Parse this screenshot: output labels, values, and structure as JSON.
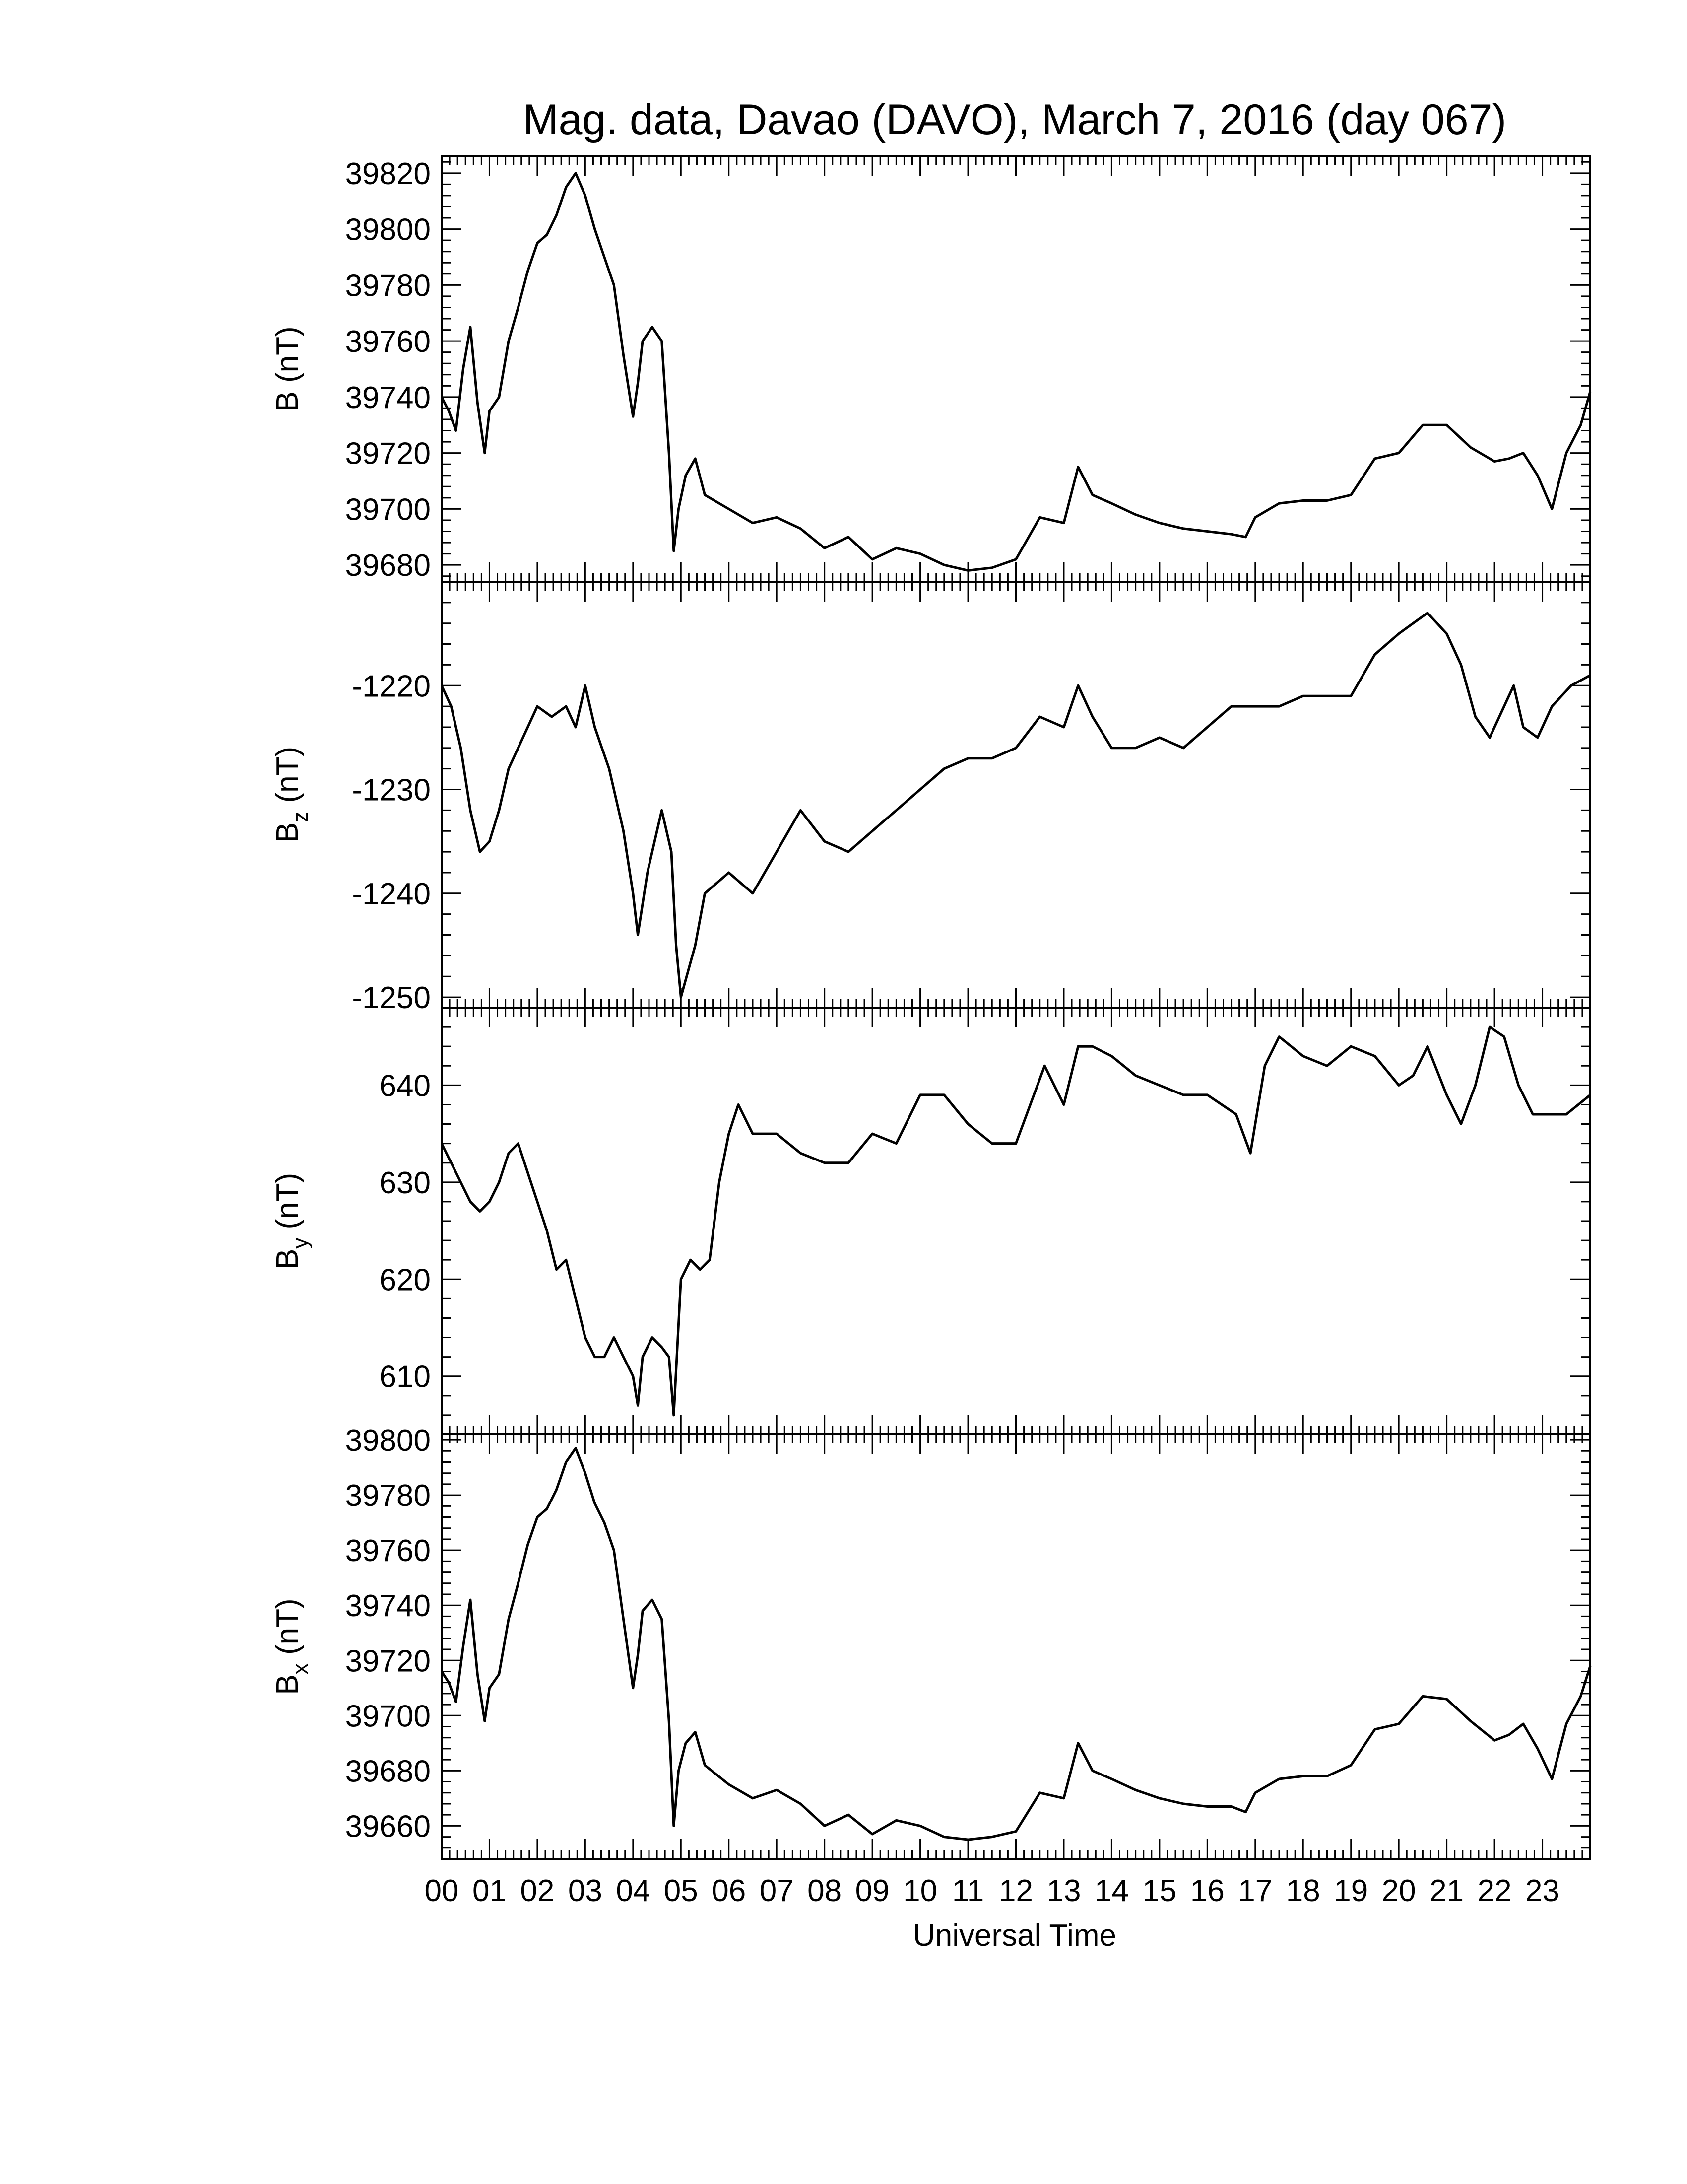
{
  "chart_data": {
    "type": "line",
    "title": "Mag. data, Davao (DAVO), March 7, 2016 (day 067)",
    "xlabel": "Universal Time",
    "x_tick_labels": [
      "00",
      "01",
      "02",
      "03",
      "04",
      "05",
      "06",
      "07",
      "08",
      "09",
      "10",
      "11",
      "12",
      "13",
      "14",
      "15",
      "16",
      "17",
      "18",
      "19",
      "20",
      "21",
      "22",
      "23"
    ],
    "xlim": [
      0,
      24
    ],
    "panels": [
      {
        "name": "B",
        "ylabel": "B (nT)",
        "ylabel_main": "B (nT)",
        "ylabel_sub": "",
        "ylabel_tail": "",
        "ylim": [
          39674,
          39826
        ],
        "y_ticks": [
          39680,
          39700,
          39720,
          39740,
          39760,
          39780,
          39800,
          39820
        ],
        "y_tick_labels": [
          "39680",
          "39700",
          "39720",
          "39740",
          "39760",
          "39780",
          "39800",
          "39820"
        ],
        "x": [
          0,
          0.15,
          0.3,
          0.45,
          0.6,
          0.75,
          0.9,
          1.0,
          1.2,
          1.4,
          1.6,
          1.8,
          2.0,
          2.2,
          2.4,
          2.6,
          2.8,
          3.0,
          3.2,
          3.4,
          3.6,
          3.8,
          4.0,
          4.1,
          4.2,
          4.4,
          4.6,
          4.75,
          4.85,
          4.95,
          5.1,
          5.3,
          5.5,
          6.0,
          6.5,
          7.0,
          7.5,
          8.0,
          8.5,
          9.0,
          9.5,
          10.0,
          10.5,
          11.0,
          11.5,
          12.0,
          12.5,
          13.0,
          13.3,
          13.6,
          14.0,
          14.5,
          15.0,
          15.5,
          16.0,
          16.5,
          16.8,
          17.0,
          17.5,
          18.0,
          18.5,
          19.0,
          19.5,
          20.0,
          20.5,
          21.0,
          21.5,
          22.0,
          22.3,
          22.6,
          22.9,
          23.2,
          23.5,
          23.8,
          24.0
        ],
        "values": [
          39740,
          39735,
          39728,
          39750,
          39765,
          39738,
          39720,
          39735,
          39740,
          39760,
          39772,
          39785,
          39795,
          39798,
          39805,
          39815,
          39820,
          39812,
          39800,
          39790,
          39780,
          39755,
          39733,
          39745,
          39760,
          39765,
          39760,
          39720,
          39685,
          39700,
          39712,
          39718,
          39705,
          39700,
          39695,
          39697,
          39693,
          39686,
          39690,
          39682,
          39686,
          39684,
          39680,
          39678,
          39679,
          39682,
          39697,
          39695,
          39715,
          39705,
          39702,
          39698,
          39695,
          39693,
          39692,
          39691,
          39690,
          39697,
          39702,
          39703,
          39703,
          39705,
          39718,
          39720,
          39730,
          39730,
          39722,
          39717,
          39718,
          39720,
          39712,
          39700,
          39720,
          39730,
          39742
        ]
      },
      {
        "name": "Bz",
        "ylabel": "Bz (nT)",
        "ylabel_main": "B",
        "ylabel_sub": "z",
        "ylabel_tail": " (nT)",
        "ylim": [
          -1251,
          -1210
        ],
        "y_ticks": [
          -1250,
          -1240,
          -1230,
          -1220
        ],
        "y_tick_labels": [
          "-1250",
          "-1240",
          "-1230",
          "-1220"
        ],
        "x": [
          0,
          0.2,
          0.4,
          0.6,
          0.8,
          1.0,
          1.2,
          1.4,
          1.6,
          1.8,
          2.0,
          2.3,
          2.6,
          2.8,
          3.0,
          3.2,
          3.5,
          3.8,
          4.0,
          4.1,
          4.3,
          4.5,
          4.6,
          4.8,
          4.9,
          5.0,
          5.3,
          5.5,
          6.0,
          6.5,
          7.0,
          7.5,
          8.0,
          8.5,
          9.0,
          9.5,
          10.0,
          10.5,
          11.0,
          11.5,
          12.0,
          12.5,
          13.0,
          13.3,
          13.6,
          14.0,
          14.5,
          15.0,
          15.5,
          16.0,
          16.5,
          17.0,
          17.5,
          18.0,
          18.5,
          19.0,
          19.5,
          20.0,
          20.3,
          20.6,
          21.0,
          21.3,
          21.6,
          21.9,
          22.2,
          22.4,
          22.6,
          22.9,
          23.2,
          23.6,
          24.0
        ],
        "values": [
          -1220,
          -1222,
          -1226,
          -1232,
          -1236,
          -1235,
          -1232,
          -1228,
          -1226,
          -1224,
          -1222,
          -1223,
          -1222,
          -1224,
          -1220,
          -1224,
          -1228,
          -1234,
          -1240,
          -1244,
          -1238,
          -1234,
          -1232,
          -1236,
          -1245,
          -1250,
          -1245,
          -1240,
          -1238,
          -1240,
          -1236,
          -1232,
          -1235,
          -1236,
          -1234,
          -1232,
          -1230,
          -1228,
          -1227,
          -1227,
          -1226,
          -1223,
          -1224,
          -1220,
          -1223,
          -1226,
          -1226,
          -1225,
          -1226,
          -1224,
          -1222,
          -1222,
          -1222,
          -1221,
          -1221,
          -1221,
          -1217,
          -1215,
          -1214,
          -1213,
          -1215,
          -1218,
          -1223,
          -1225,
          -1222,
          -1220,
          -1224,
          -1225,
          -1222,
          -1220,
          -1219
        ]
      },
      {
        "name": "By",
        "ylabel": "By (nT)",
        "ylabel_main": "B",
        "ylabel_sub": "y",
        "ylabel_tail": " (nT)",
        "ylim": [
          604,
          648
        ],
        "y_ticks": [
          610,
          620,
          630,
          640
        ],
        "y_tick_labels": [
          "610",
          "620",
          "630",
          "640"
        ],
        "x": [
          0,
          0.2,
          0.4,
          0.6,
          0.8,
          1.0,
          1.2,
          1.4,
          1.6,
          1.8,
          2.0,
          2.2,
          2.4,
          2.6,
          2.8,
          3.0,
          3.2,
          3.4,
          3.6,
          3.8,
          4.0,
          4.1,
          4.2,
          4.4,
          4.6,
          4.75,
          4.85,
          5.0,
          5.2,
          5.4,
          5.6,
          5.8,
          6.0,
          6.2,
          6.5,
          7.0,
          7.5,
          8.0,
          8.5,
          9.0,
          9.5,
          10.0,
          10.5,
          11.0,
          11.5,
          12.0,
          12.3,
          12.6,
          13.0,
          13.3,
          13.6,
          14.0,
          14.5,
          15.0,
          15.5,
          16.0,
          16.3,
          16.6,
          16.9,
          17.2,
          17.5,
          18.0,
          18.5,
          19.0,
          19.5,
          20.0,
          20.3,
          20.6,
          21.0,
          21.3,
          21.6,
          21.9,
          22.2,
          22.5,
          22.8,
          23.1,
          23.5,
          24.0
        ],
        "values": [
          634,
          632,
          630,
          628,
          627,
          628,
          630,
          633,
          634,
          631,
          628,
          625,
          621,
          622,
          618,
          614,
          612,
          612,
          614,
          612,
          610,
          607,
          612,
          614,
          613,
          612,
          606,
          620,
          622,
          621,
          622,
          630,
          635,
          638,
          635,
          635,
          633,
          632,
          632,
          635,
          634,
          639,
          639,
          636,
          634,
          634,
          638,
          642,
          638,
          644,
          644,
          643,
          641,
          640,
          639,
          639,
          638,
          637,
          633,
          642,
          645,
          643,
          642,
          644,
          643,
          640,
          641,
          644,
          639,
          636,
          640,
          646,
          645,
          640,
          637,
          637,
          637,
          639
        ]
      },
      {
        "name": "Bx",
        "ylabel": "Bx (nT)",
        "ylabel_main": "B",
        "ylabel_sub": "x",
        "ylabel_tail": " (nT)",
        "ylim": [
          39648,
          39802
        ],
        "y_ticks": [
          39660,
          39680,
          39700,
          39720,
          39740,
          39760,
          39780,
          39800
        ],
        "y_tick_labels": [
          "39660",
          "39680",
          "39700",
          "39720",
          "39740",
          "39760",
          "39780",
          "39800"
        ],
        "x": [
          0,
          0.15,
          0.3,
          0.45,
          0.6,
          0.75,
          0.9,
          1.0,
          1.2,
          1.4,
          1.6,
          1.8,
          2.0,
          2.2,
          2.4,
          2.6,
          2.8,
          3.0,
          3.2,
          3.4,
          3.6,
          3.8,
          4.0,
          4.1,
          4.2,
          4.4,
          4.6,
          4.75,
          4.85,
          4.95,
          5.1,
          5.3,
          5.5,
          6.0,
          6.5,
          7.0,
          7.5,
          8.0,
          8.5,
          9.0,
          9.5,
          10.0,
          10.5,
          11.0,
          11.5,
          12.0,
          12.5,
          13.0,
          13.3,
          13.6,
          14.0,
          14.5,
          15.0,
          15.5,
          16.0,
          16.5,
          16.8,
          17.0,
          17.5,
          18.0,
          18.5,
          19.0,
          19.5,
          20.0,
          20.5,
          21.0,
          21.5,
          22.0,
          22.3,
          22.6,
          22.9,
          23.2,
          23.5,
          23.8,
          24.0
        ],
        "values": [
          39716,
          39712,
          39705,
          39725,
          39742,
          39715,
          39698,
          39710,
          39715,
          39735,
          39748,
          39762,
          39772,
          39775,
          39782,
          39792,
          39797,
          39788,
          39777,
          39770,
          39760,
          39735,
          39710,
          39722,
          39738,
          39742,
          39735,
          39698,
          39660,
          39680,
          39690,
          39694,
          39682,
          39675,
          39670,
          39673,
          39668,
          39660,
          39664,
          39657,
          39662,
          39660,
          39656,
          39655,
          39656,
          39658,
          39672,
          39670,
          39690,
          39680,
          39677,
          39673,
          39670,
          39668,
          39667,
          39667,
          39665,
          39672,
          39677,
          39678,
          39678,
          39682,
          39695,
          39697,
          39707,
          39706,
          39698,
          39691,
          39693,
          39697,
          39688,
          39677,
          39697,
          39707,
          39718
        ]
      }
    ]
  }
}
